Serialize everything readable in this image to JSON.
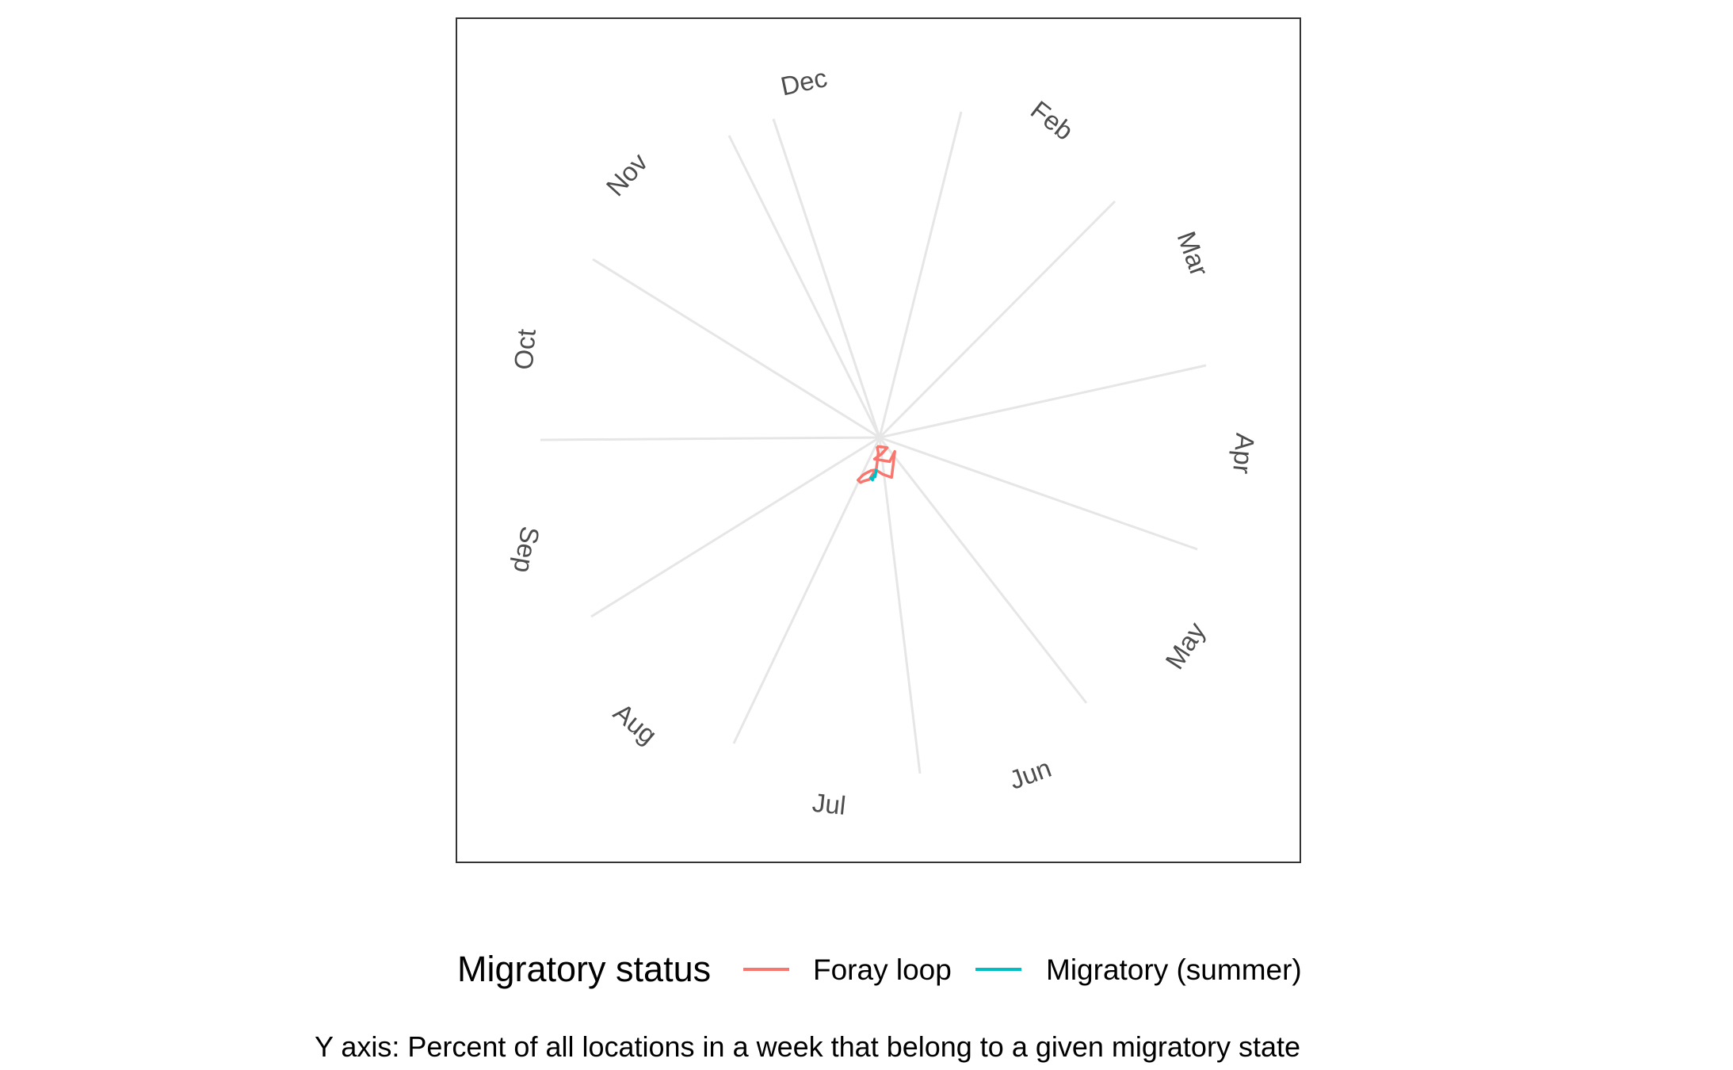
{
  "chart_data": {
    "type": "line",
    "coord": "polar",
    "theta_labels": [
      "Oct",
      "Nov",
      "Dec",
      "Feb",
      "Mar",
      "Apr",
      "May",
      "Jun",
      "Jul",
      "Aug",
      "Sep"
    ],
    "grid": true,
    "legend": {
      "title": "Migratory status",
      "position": "bottom",
      "entries": [
        {
          "label": "Foray loop",
          "color": "#F8766D"
        },
        {
          "label": "Migratory (summer)",
          "color": "#00BFC4"
        }
      ]
    },
    "series": [
      {
        "name": "Foray loop",
        "color": "#F8766D",
        "path": [
          [
            -0.4,
            1.4
          ],
          [
            0.5,
            1.5
          ],
          [
            1.2,
            1.6
          ],
          [
            0.3,
            2.6
          ],
          [
            -0.8,
            3.4
          ],
          [
            1.6,
            3.8
          ],
          [
            2.4,
            2.2
          ],
          [
            1.9,
            6.3
          ],
          [
            0.5,
            5.8
          ],
          [
            -0.6,
            5.1
          ],
          [
            -1.3,
            5.2
          ],
          [
            -2.1,
            5.6
          ],
          [
            -2.6,
            5.9
          ],
          [
            -3.4,
            6.7
          ],
          [
            -3.0,
            7.1
          ],
          [
            -2.6,
            6.9
          ],
          [
            -1.6,
            6.6
          ],
          [
            -0.5,
            4.9
          ],
          [
            -0.2,
            2.4
          ],
          [
            -0.4,
            1.4
          ]
        ]
      },
      {
        "name": "Migratory (summer)",
        "color": "#00BFC4",
        "path": [
          [
            -1.5,
            6.2
          ],
          [
            -1.1,
            6.7
          ],
          [
            -0.9,
            5.9
          ],
          [
            -0.7,
            6.2
          ],
          [
            -0.5,
            5.0
          ]
        ]
      }
    ],
    "caption": "Y axis: Percent of all locations in a week that belong to a given migratory state"
  },
  "colors": {
    "grid": "#e6e6e6",
    "panel_border": "#333333",
    "axis_text": "#4d4d4d"
  }
}
